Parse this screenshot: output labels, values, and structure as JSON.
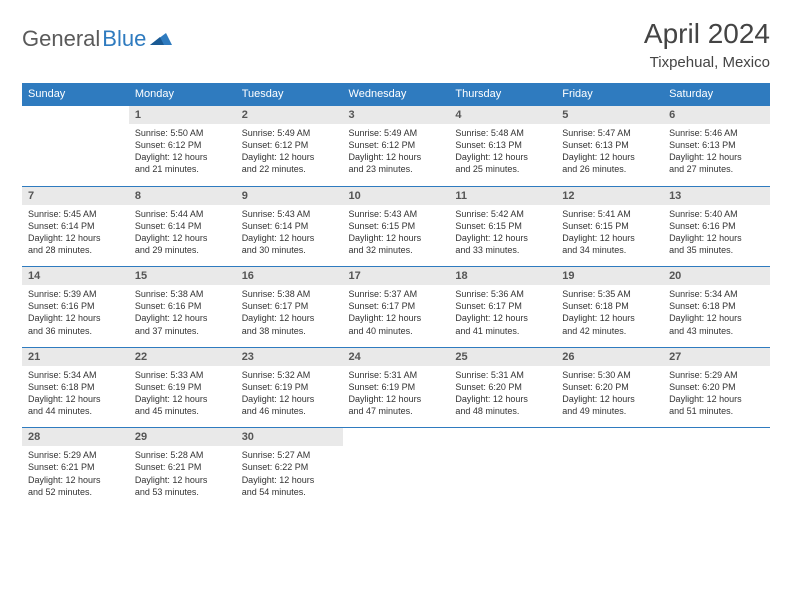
{
  "brand": {
    "name_part1": "General",
    "name_part2": "Blue"
  },
  "title": "April 2024",
  "location": "Tixpehual, Mexico",
  "colors": {
    "brand_blue": "#2f7bbf",
    "header_bg": "#2f7bbf",
    "header_text": "#ffffff",
    "daynum_bg": "#e9e9e9",
    "daynum_text": "#555555",
    "body_text": "#333333",
    "rule": "#2f7bbf",
    "page_bg": "#ffffff"
  },
  "typography": {
    "title_fontsize": 28,
    "location_fontsize": 15,
    "weekday_fontsize": 11,
    "daynum_fontsize": 11,
    "cell_fontsize": 9
  },
  "weekdays": [
    "Sunday",
    "Monday",
    "Tuesday",
    "Wednesday",
    "Thursday",
    "Friday",
    "Saturday"
  ],
  "weeks": [
    {
      "nums": [
        "",
        "1",
        "2",
        "3",
        "4",
        "5",
        "6"
      ],
      "cells": [
        null,
        {
          "sunrise": "Sunrise: 5:50 AM",
          "sunset": "Sunset: 6:12 PM",
          "day1": "Daylight: 12 hours",
          "day2": "and 21 minutes."
        },
        {
          "sunrise": "Sunrise: 5:49 AM",
          "sunset": "Sunset: 6:12 PM",
          "day1": "Daylight: 12 hours",
          "day2": "and 22 minutes."
        },
        {
          "sunrise": "Sunrise: 5:49 AM",
          "sunset": "Sunset: 6:12 PM",
          "day1": "Daylight: 12 hours",
          "day2": "and 23 minutes."
        },
        {
          "sunrise": "Sunrise: 5:48 AM",
          "sunset": "Sunset: 6:13 PM",
          "day1": "Daylight: 12 hours",
          "day2": "and 25 minutes."
        },
        {
          "sunrise": "Sunrise: 5:47 AM",
          "sunset": "Sunset: 6:13 PM",
          "day1": "Daylight: 12 hours",
          "day2": "and 26 minutes."
        },
        {
          "sunrise": "Sunrise: 5:46 AM",
          "sunset": "Sunset: 6:13 PM",
          "day1": "Daylight: 12 hours",
          "day2": "and 27 minutes."
        }
      ]
    },
    {
      "nums": [
        "7",
        "8",
        "9",
        "10",
        "11",
        "12",
        "13"
      ],
      "cells": [
        {
          "sunrise": "Sunrise: 5:45 AM",
          "sunset": "Sunset: 6:14 PM",
          "day1": "Daylight: 12 hours",
          "day2": "and 28 minutes."
        },
        {
          "sunrise": "Sunrise: 5:44 AM",
          "sunset": "Sunset: 6:14 PM",
          "day1": "Daylight: 12 hours",
          "day2": "and 29 minutes."
        },
        {
          "sunrise": "Sunrise: 5:43 AM",
          "sunset": "Sunset: 6:14 PM",
          "day1": "Daylight: 12 hours",
          "day2": "and 30 minutes."
        },
        {
          "sunrise": "Sunrise: 5:43 AM",
          "sunset": "Sunset: 6:15 PM",
          "day1": "Daylight: 12 hours",
          "day2": "and 32 minutes."
        },
        {
          "sunrise": "Sunrise: 5:42 AM",
          "sunset": "Sunset: 6:15 PM",
          "day1": "Daylight: 12 hours",
          "day2": "and 33 minutes."
        },
        {
          "sunrise": "Sunrise: 5:41 AM",
          "sunset": "Sunset: 6:15 PM",
          "day1": "Daylight: 12 hours",
          "day2": "and 34 minutes."
        },
        {
          "sunrise": "Sunrise: 5:40 AM",
          "sunset": "Sunset: 6:16 PM",
          "day1": "Daylight: 12 hours",
          "day2": "and 35 minutes."
        }
      ]
    },
    {
      "nums": [
        "14",
        "15",
        "16",
        "17",
        "18",
        "19",
        "20"
      ],
      "cells": [
        {
          "sunrise": "Sunrise: 5:39 AM",
          "sunset": "Sunset: 6:16 PM",
          "day1": "Daylight: 12 hours",
          "day2": "and 36 minutes."
        },
        {
          "sunrise": "Sunrise: 5:38 AM",
          "sunset": "Sunset: 6:16 PM",
          "day1": "Daylight: 12 hours",
          "day2": "and 37 minutes."
        },
        {
          "sunrise": "Sunrise: 5:38 AM",
          "sunset": "Sunset: 6:17 PM",
          "day1": "Daylight: 12 hours",
          "day2": "and 38 minutes."
        },
        {
          "sunrise": "Sunrise: 5:37 AM",
          "sunset": "Sunset: 6:17 PM",
          "day1": "Daylight: 12 hours",
          "day2": "and 40 minutes."
        },
        {
          "sunrise": "Sunrise: 5:36 AM",
          "sunset": "Sunset: 6:17 PM",
          "day1": "Daylight: 12 hours",
          "day2": "and 41 minutes."
        },
        {
          "sunrise": "Sunrise: 5:35 AM",
          "sunset": "Sunset: 6:18 PM",
          "day1": "Daylight: 12 hours",
          "day2": "and 42 minutes."
        },
        {
          "sunrise": "Sunrise: 5:34 AM",
          "sunset": "Sunset: 6:18 PM",
          "day1": "Daylight: 12 hours",
          "day2": "and 43 minutes."
        }
      ]
    },
    {
      "nums": [
        "21",
        "22",
        "23",
        "24",
        "25",
        "26",
        "27"
      ],
      "cells": [
        {
          "sunrise": "Sunrise: 5:34 AM",
          "sunset": "Sunset: 6:18 PM",
          "day1": "Daylight: 12 hours",
          "day2": "and 44 minutes."
        },
        {
          "sunrise": "Sunrise: 5:33 AM",
          "sunset": "Sunset: 6:19 PM",
          "day1": "Daylight: 12 hours",
          "day2": "and 45 minutes."
        },
        {
          "sunrise": "Sunrise: 5:32 AM",
          "sunset": "Sunset: 6:19 PM",
          "day1": "Daylight: 12 hours",
          "day2": "and 46 minutes."
        },
        {
          "sunrise": "Sunrise: 5:31 AM",
          "sunset": "Sunset: 6:19 PM",
          "day1": "Daylight: 12 hours",
          "day2": "and 47 minutes."
        },
        {
          "sunrise": "Sunrise: 5:31 AM",
          "sunset": "Sunset: 6:20 PM",
          "day1": "Daylight: 12 hours",
          "day2": "and 48 minutes."
        },
        {
          "sunrise": "Sunrise: 5:30 AM",
          "sunset": "Sunset: 6:20 PM",
          "day1": "Daylight: 12 hours",
          "day2": "and 49 minutes."
        },
        {
          "sunrise": "Sunrise: 5:29 AM",
          "sunset": "Sunset: 6:20 PM",
          "day1": "Daylight: 12 hours",
          "day2": "and 51 minutes."
        }
      ]
    },
    {
      "nums": [
        "28",
        "29",
        "30",
        "",
        "",
        "",
        ""
      ],
      "cells": [
        {
          "sunrise": "Sunrise: 5:29 AM",
          "sunset": "Sunset: 6:21 PM",
          "day1": "Daylight: 12 hours",
          "day2": "and 52 minutes."
        },
        {
          "sunrise": "Sunrise: 5:28 AM",
          "sunset": "Sunset: 6:21 PM",
          "day1": "Daylight: 12 hours",
          "day2": "and 53 minutes."
        },
        {
          "sunrise": "Sunrise: 5:27 AM",
          "sunset": "Sunset: 6:22 PM",
          "day1": "Daylight: 12 hours",
          "day2": "and 54 minutes."
        },
        null,
        null,
        null,
        null
      ]
    }
  ]
}
